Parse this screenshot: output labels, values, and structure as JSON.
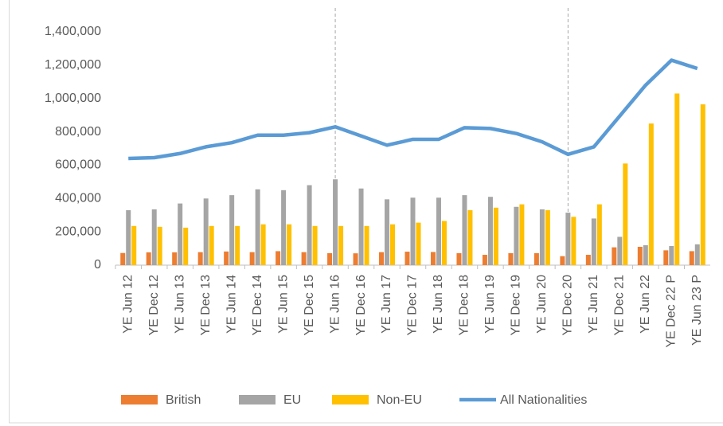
{
  "chart_data": {
    "type": "bar",
    "categories": [
      "YE Jun 12",
      "YE Dec 12",
      "YE Jun 13",
      "YE Dec 13",
      "YE Jun 14",
      "YE Dec 14",
      "YE Jun 15",
      "YE Dec 15",
      "YE Jun 16",
      "YE Dec 16",
      "YE Jun 17",
      "YE Dec 17",
      "YE Jun 18",
      "YE Dec 18",
      "YE Jun 19",
      "YE Dec 19",
      "YE Jun 20",
      "YE Dec 20",
      "YE Jun 21",
      "YE Dec 21",
      "YE Jun 22",
      "YE Dec 22 P",
      "YE Jun 23 P"
    ],
    "series": [
      {
        "name": "British",
        "type": "bar",
        "color": "#ed7d31",
        "values": [
          73000,
          77000,
          77000,
          78000,
          82000,
          78000,
          84000,
          78000,
          72000,
          71000,
          78000,
          81000,
          79000,
          72000,
          62000,
          72000,
          72000,
          54000,
          62000,
          107000,
          110000,
          89000,
          84000
        ]
      },
      {
        "name": "EU",
        "type": "bar",
        "color": "#a5a5a5",
        "values": [
          330000,
          335000,
          370000,
          400000,
          420000,
          455000,
          450000,
          480000,
          515000,
          460000,
          395000,
          405000,
          405000,
          420000,
          410000,
          350000,
          335000,
          315000,
          280000,
          170000,
          120000,
          115000,
          125000
        ]
      },
      {
        "name": "Non-EU",
        "type": "bar",
        "color": "#ffc000",
        "values": [
          235000,
          230000,
          225000,
          235000,
          235000,
          245000,
          245000,
          235000,
          235000,
          235000,
          245000,
          255000,
          265000,
          330000,
          345000,
          365000,
          330000,
          290000,
          365000,
          610000,
          850000,
          1030000,
          965000
        ]
      },
      {
        "name": "All Nationalities",
        "type": "line",
        "color": "#5b9bd5",
        "values": [
          640000,
          645000,
          670000,
          710000,
          735000,
          780000,
          780000,
          795000,
          830000,
          775000,
          720000,
          755000,
          755000,
          825000,
          820000,
          790000,
          740000,
          665000,
          710000,
          895000,
          1080000,
          1230000,
          1180000
        ]
      }
    ],
    "ylim": [
      0,
      1400000
    ],
    "yticks": [
      0,
      {
        "value": 200000,
        "label": "200,000"
      },
      {
        "value": 400000,
        "label": "400,000"
      },
      {
        "value": 600000,
        "label": "600,000"
      },
      {
        "value": 800000,
        "label": "800,000"
      },
      {
        "value": 1000000,
        "label": "1,000,000"
      },
      {
        "value": 1200000,
        "label": "1,200,000"
      },
      {
        "value": 1400000,
        "label": "1,400,000"
      }
    ],
    "grid": false,
    "vlines": [
      "YE Jun 16",
      "YE Dec 20"
    ],
    "legend": "bottom"
  }
}
